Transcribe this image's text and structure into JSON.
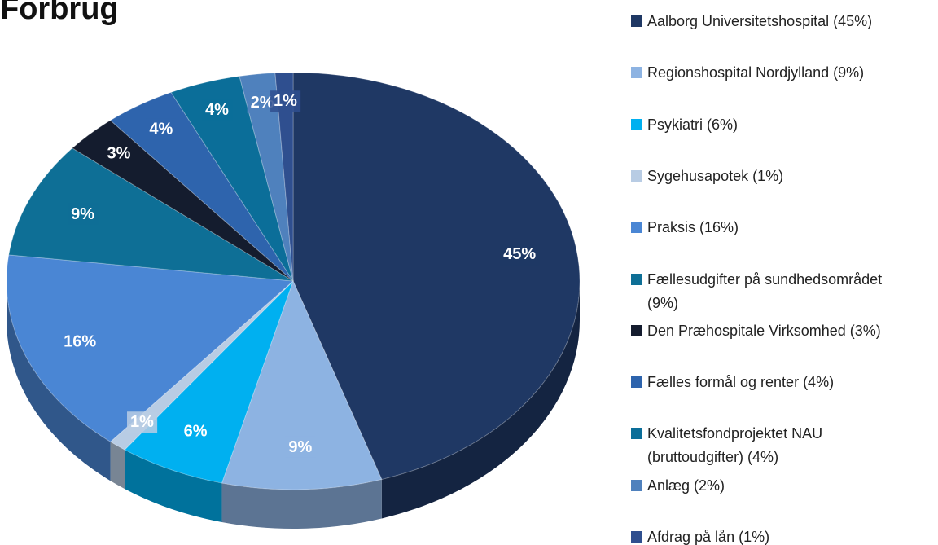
{
  "chart_data": {
    "type": "pie",
    "title": "Forbrug",
    "categories": [
      "Aalborg Universitetshospital (45%)",
      "Regionshospital Nordjylland (9%)",
      "Psykiatri (6%)",
      "Sygehusapotek (1%)",
      "Praksis (16%)",
      "Fællesudgifter på sundhedsområdet (9%)",
      "Den Præhospitale Virksomhed (3%)",
      "Fælles formål og renter (4%)",
      "Kvalitetsfondprojektet NAU (bruttoudgifter) (4%)",
      "Anlæg (2%)",
      "Afdrag på lån (1%)"
    ],
    "values": [
      45,
      9,
      6,
      1,
      16,
      9,
      3,
      4,
      4,
      2,
      1
    ],
    "value_labels": [
      "45%",
      "9%",
      "6%",
      "1%",
      "16%",
      "9%",
      "3%",
      "4%",
      "4%",
      "2%",
      "1%"
    ],
    "colors": [
      "#1f3864",
      "#8db3e2",
      "#00b0f0",
      "#b8cce4",
      "#4a86d4",
      "#0e6f96",
      "#141c2e",
      "#2e64ad",
      "#0b6e99",
      "#4f81bd",
      "#2f4f8f"
    ],
    "legend": "right"
  }
}
